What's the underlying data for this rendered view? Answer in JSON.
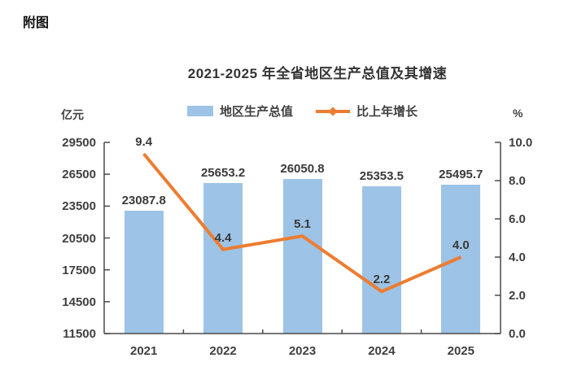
{
  "page": {
    "heading": "附图"
  },
  "chart_data": {
    "type": "bar",
    "subtype": "bar+line dual axis",
    "title": "2021-2025 年全省地区生产总值及其增速",
    "categories": [
      "2021",
      "2022",
      "2023",
      "2024",
      "2025"
    ],
    "series": [
      {
        "name": "地区生产总值",
        "type": "bar",
        "axis": "left",
        "values": [
          23087.8,
          25653.2,
          26050.8,
          25353.5,
          25495.7
        ],
        "labels": [
          "23087.8",
          "25653.2",
          "26050.8",
          "25353.5",
          "25495.7"
        ],
        "color": "#9DC3E6"
      },
      {
        "name": "比上年增长",
        "type": "line",
        "axis": "right",
        "values": [
          9.4,
          4.4,
          5.1,
          2.2,
          4.0
        ],
        "labels": [
          "9.4",
          "4.4",
          "5.1",
          "2.2",
          "4.0"
        ],
        "color": "#ED7D31"
      }
    ],
    "left_axis": {
      "unit": "亿元",
      "min": 11500,
      "max": 29500,
      "ticks": [
        "29500",
        "26500",
        "23500",
        "20500",
        "17500",
        "14500",
        "11500"
      ]
    },
    "right_axis": {
      "unit": "%",
      "min": 0,
      "max": 10,
      "ticks": [
        "10.0",
        "8.0",
        "6.0",
        "4.0",
        "2.0",
        "0.0"
      ]
    },
    "legend_position": "top",
    "grid": false,
    "colors": {
      "bar": "#9DC3E6",
      "line": "#ED7D31",
      "axis": "#4a4a4a",
      "text": "#404040"
    }
  }
}
